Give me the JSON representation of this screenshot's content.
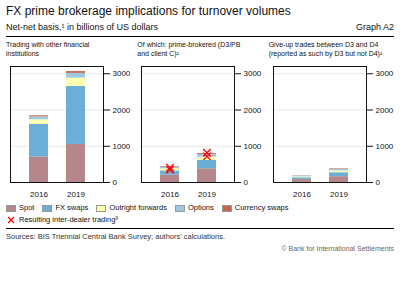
{
  "title": "FX prime brokerage implications for turnover volumes",
  "subtitle": "Net-net basis,¹ in billions of US dollars",
  "annotations": [
    "Graph A2",
    "Sources: BIS Triennial Central Bank Survey; authors' calculations.",
    "© Bank for International Settlements"
  ],
  "legend": "bottom",
  "chart_data": [
    {
      "type": "bar",
      "stacked": true,
      "grid": true,
      "title": "Trading with other financial\ninstitutions",
      "categories": [
        "2016",
        "2019"
      ],
      "series": [
        {
          "name": "Spot",
          "color": "#b5868a",
          "values": [
            700,
            1050
          ]
        },
        {
          "name": "FX swaps",
          "color": "#6baed6",
          "values": [
            900,
            1600
          ]
        },
        {
          "name": "Outright forwards",
          "color": "#ffffb2",
          "values": [
            130,
            230
          ]
        },
        {
          "name": "Options",
          "color": "#9ecae1",
          "values": [
            80,
            130
          ]
        },
        {
          "name": "Currency swaps",
          "color": "#c9634e",
          "values": [
            30,
            50
          ]
        }
      ],
      "ylim": [
        0,
        3200
      ],
      "yticks": [
        0,
        1000,
        2000,
        3000
      ]
    },
    {
      "type": "bar",
      "stacked": true,
      "grid": true,
      "title": "Of which: prime-brokered (D3/PB\nand client C)²",
      "categories": [
        "2016",
        "2019"
      ],
      "series": [
        {
          "name": "Spot",
          "color": "#b5868a",
          "values": [
            200,
            380
          ]
        },
        {
          "name": "FX swaps",
          "color": "#6baed6",
          "values": [
            120,
            230
          ]
        },
        {
          "name": "Outright forwards",
          "color": "#ffffb2",
          "values": [
            60,
            90
          ]
        },
        {
          "name": "Options",
          "color": "#9ecae1",
          "values": [
            40,
            70
          ]
        },
        {
          "name": "Currency swaps",
          "color": "#c9634e",
          "values": [
            15,
            25
          ]
        },
        {
          "name": "Resulting inter-dealer trading³",
          "type": "scatter",
          "marker": "x",
          "color": "red",
          "values": [
            [
              350,
              410
            ],
            [
              720,
              820
            ]
          ]
        }
      ],
      "ylim": [
        0,
        3200
      ],
      "yticks": [
        0,
        1000,
        2000,
        3000
      ]
    },
    {
      "type": "bar",
      "stacked": true,
      "grid": true,
      "title": "Give-up trades between D3 and D4\n(reported as such by D3 but not D4)²",
      "categories": [
        "2016",
        "2019"
      ],
      "series": [
        {
          "name": "Spot",
          "color": "#b5868a",
          "values": [
            80,
            160
          ]
        },
        {
          "name": "FX swaps",
          "color": "#6baed6",
          "values": [
            50,
            110
          ]
        },
        {
          "name": "Outright forwards",
          "color": "#ffffb2",
          "values": [
            25,
            50
          ]
        },
        {
          "name": "Options",
          "color": "#9ecae1",
          "values": [
            20,
            40
          ]
        },
        {
          "name": "Currency swaps",
          "color": "#c9634e",
          "values": [
            8,
            15
          ]
        }
      ],
      "ylim": [
        0,
        3200
      ],
      "yticks": [
        0,
        1000,
        2000,
        3000
      ]
    }
  ]
}
